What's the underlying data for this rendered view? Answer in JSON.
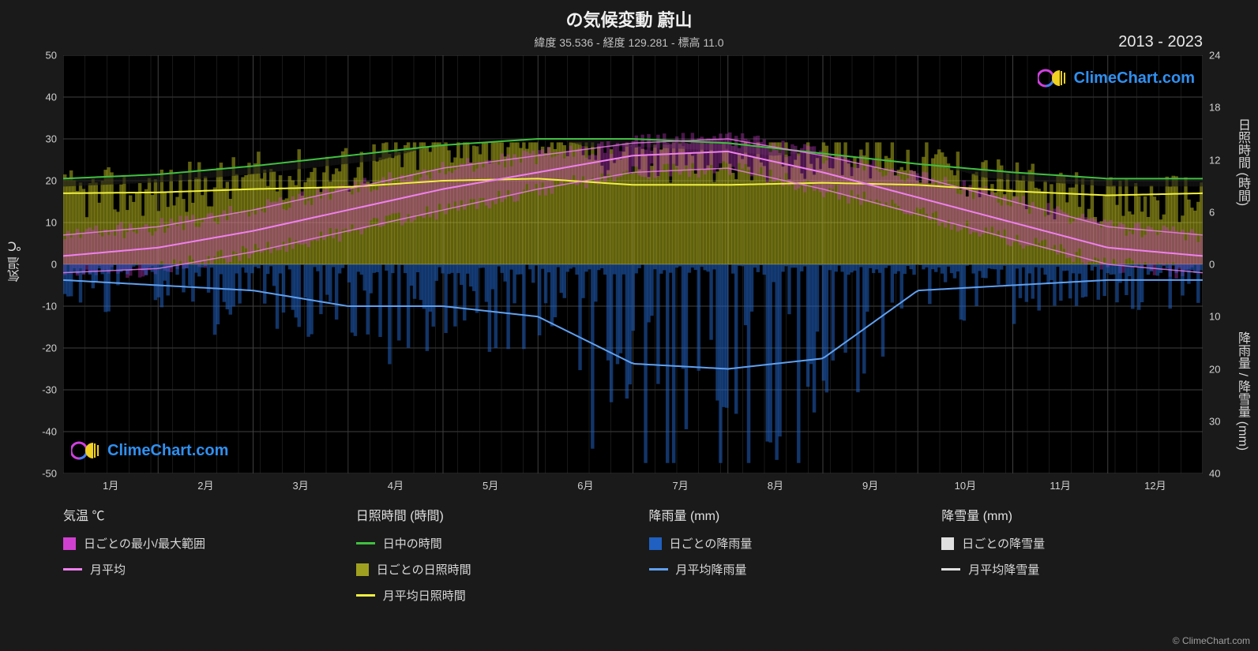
{
  "title": "の気候変動 蔚山",
  "subtitle": "緯度 35.536 - 経度 129.281 - 標高 11.0",
  "year_range": "2013 - 2023",
  "axis_left": {
    "label": "気温 ℃",
    "min": -50,
    "max": 50,
    "step": 10,
    "ticks": [
      -50,
      -40,
      -30,
      -20,
      -10,
      0,
      10,
      20,
      30,
      40,
      50
    ]
  },
  "axis_right_top": {
    "label": "日照時間 (時間)",
    "min": 0,
    "max": 24,
    "step": 6,
    "ticks": [
      0,
      6,
      12,
      18,
      24
    ]
  },
  "axis_right_bot": {
    "label": "降雨量 / 降雪量 (mm)",
    "min": 0,
    "max": 40,
    "step": 10,
    "ticks": [
      0,
      10,
      20,
      30,
      40
    ]
  },
  "months": [
    "1月",
    "2月",
    "3月",
    "4月",
    "5月",
    "6月",
    "7月",
    "8月",
    "9月",
    "10月",
    "11月",
    "12月"
  ],
  "colors": {
    "background": "#1a1a1a",
    "plot_bg": "#000000",
    "grid": "#404040",
    "text": "#e0e0e0",
    "temp_range": "#d040d0",
    "temp_avg": "#f080f0",
    "daylight": "#40c040",
    "sun_bars": "#c0c020",
    "sun_avg": "#f0f040",
    "rain_bars": "#2060c0",
    "rain_avg": "#60a0f0",
    "snow_bars": "#e0e0e0",
    "snow_avg": "#e0e0e0",
    "brand": "#3090f0"
  },
  "series": {
    "temp_min": [
      -2,
      -1,
      3,
      8,
      13,
      18,
      22,
      23,
      18,
      12,
      6,
      0
    ],
    "temp_max": [
      7,
      9,
      13,
      18,
      23,
      26,
      29,
      30,
      26,
      21,
      15,
      9
    ],
    "temp_avg": [
      2,
      4,
      8,
      13,
      18,
      22,
      26,
      27,
      22,
      16,
      10,
      4
    ],
    "daylight_hours": [
      20.5,
      21.5,
      23.5,
      26,
      28.5,
      30,
      30,
      29,
      26.5,
      24,
      22,
      20.5
    ],
    "sun_hours": [
      17,
      17.2,
      18,
      18.5,
      20,
      20.5,
      19,
      19,
      19.5,
      19,
      17.5,
      16.5
    ],
    "rain_mm": [
      3,
      4,
      5,
      8,
      8,
      10,
      19,
      20,
      18,
      5,
      4,
      3
    ]
  },
  "daily_bars": {
    "count": 365,
    "temp_noise": 4,
    "sun_noise": 3,
    "rain_noise": 8
  },
  "legend": {
    "col1": {
      "title": "気温 ℃",
      "items": [
        {
          "type": "swatch",
          "color": "#d040d0",
          "label": "日ごとの最小/最大範囲"
        },
        {
          "type": "line",
          "color": "#f080f0",
          "label": "月平均"
        }
      ]
    },
    "col2": {
      "title": "日照時間 (時間)",
      "items": [
        {
          "type": "line",
          "color": "#40c040",
          "label": "日中の時間"
        },
        {
          "type": "swatch",
          "color": "#a0a020",
          "label": "日ごとの日照時間"
        },
        {
          "type": "line",
          "color": "#f0f040",
          "label": "月平均日照時間"
        }
      ]
    },
    "col3": {
      "title": "降雨量 (mm)",
      "items": [
        {
          "type": "swatch",
          "color": "#2060c0",
          "label": "日ごとの降雨量"
        },
        {
          "type": "line",
          "color": "#60a0f0",
          "label": "月平均降雨量"
        }
      ]
    },
    "col4": {
      "title": "降雪量 (mm)",
      "items": [
        {
          "type": "swatch",
          "color": "#e0e0e0",
          "label": "日ごとの降雪量"
        },
        {
          "type": "line",
          "color": "#e0e0e0",
          "label": "月平均降雪量"
        }
      ]
    }
  },
  "watermark": "ClimeChart.com",
  "copyright": "© ClimeChart.com"
}
